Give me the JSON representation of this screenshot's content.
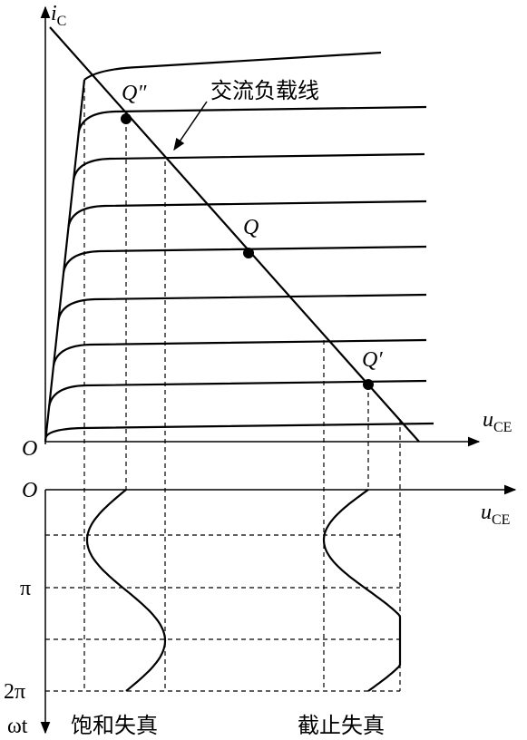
{
  "top_graph": {
    "y_axis_label": {
      "main": "i",
      "sub": "C"
    },
    "origin": "O",
    "x_axis_label": {
      "main": "u",
      "sub": "CE"
    },
    "points": [
      "Q″",
      "Q",
      "Q′"
    ],
    "load_line_label": "交流负载线"
  },
  "bottom_graph": {
    "origin": "O",
    "x_axis_label": {
      "main": "u",
      "sub": "CE"
    },
    "time_ticks": [
      "π",
      "2π"
    ],
    "time_axis_label": "ωt",
    "captions": [
      "饱和失真",
      "截止失真"
    ]
  }
}
